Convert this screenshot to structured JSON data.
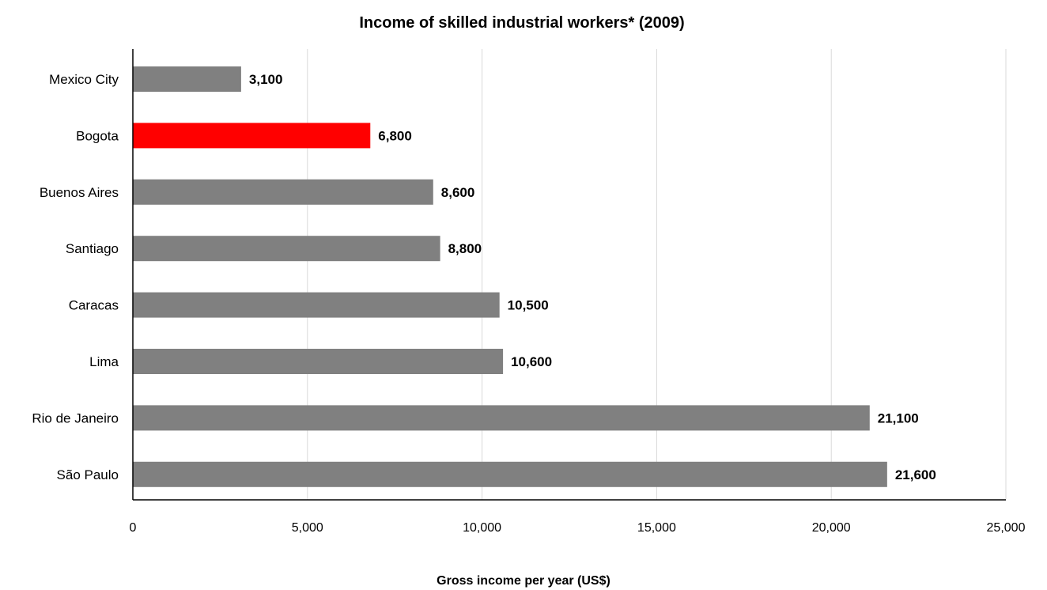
{
  "chart_data": {
    "type": "bar",
    "orientation": "horizontal",
    "title": "Income of skilled industrial workers* (2009)",
    "xlabel": "Gross income per year (US$)",
    "ylabel": "",
    "categories": [
      "Mexico City",
      "Bogota",
      "Buenos Aires",
      "Santiago",
      "Caracas",
      "Lima",
      "Rio de Janeiro",
      "São Paulo"
    ],
    "values": [
      3100,
      6800,
      8600,
      8800,
      10500,
      10600,
      21100,
      21600
    ],
    "value_labels": [
      "3,100",
      "6,800",
      "8,600",
      "8,800",
      "10,500",
      "10,600",
      "21,100",
      "21,600"
    ],
    "xlim": [
      0,
      25000
    ],
    "x_ticks": [
      0,
      5000,
      10000,
      15000,
      20000,
      25000
    ],
    "x_tick_labels": [
      "0",
      "5,000",
      "10,000",
      "15,000",
      "20,000",
      "25,000"
    ],
    "grid": "vertical",
    "legend": "none",
    "bar_color": "#808080",
    "highlight_category": "Bogota",
    "highlight_color": "#ff0000"
  }
}
